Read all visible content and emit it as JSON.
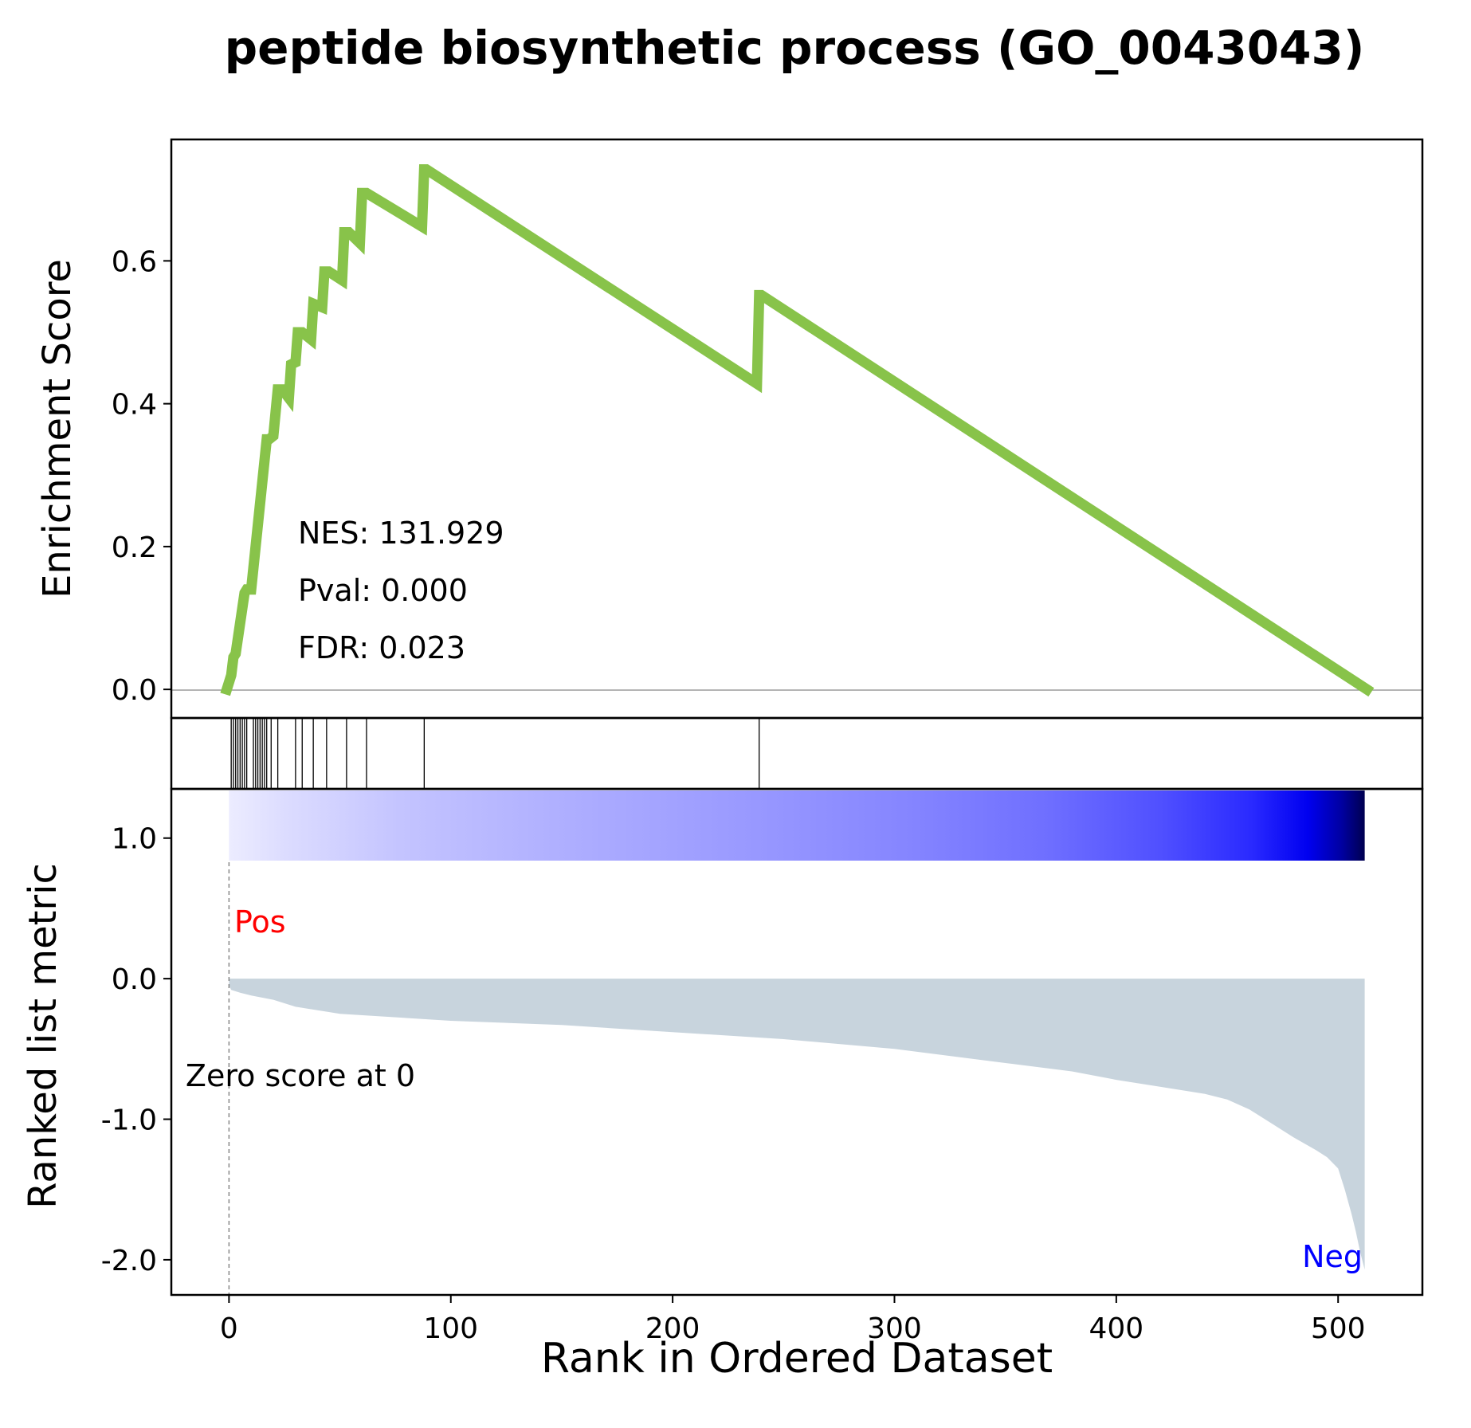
{
  "chart_data": {
    "type": "line",
    "title": "peptide biosynthetic process (GO_0043043)",
    "xlabel": "Rank in Ordered Dataset",
    "es_panel": {
      "ylabel": "Enrichment Score",
      "ylim": [
        -0.04,
        0.77
      ],
      "yticks": [
        "0.0",
        "0.2",
        "0.4",
        "0.6"
      ],
      "zero_line": true,
      "line_color": "#88c34a",
      "stats": {
        "nes": "NES: 131.929",
        "pval": "Pval: 0.000",
        "fdr": "FDR: 0.023"
      },
      "series": [
        {
          "x": [
            -1,
            1,
            2,
            3,
            7,
            8,
            10,
            17,
            18,
            20,
            22,
            24,
            27,
            28,
            30,
            31,
            33,
            37,
            38,
            42,
            43,
            45,
            51,
            52,
            54,
            59,
            60,
            62,
            87,
            88,
            89,
            238,
            239,
            240,
            513
          ],
          "y": [
            0.0,
            0.02,
            0.045,
            0.05,
            0.135,
            0.14,
            0.14,
            0.35,
            0.35,
            0.355,
            0.42,
            0.42,
            0.408,
            0.455,
            0.458,
            0.5,
            0.5,
            0.49,
            0.54,
            0.535,
            0.585,
            0.585,
            0.573,
            0.64,
            0.64,
            0.625,
            0.695,
            0.695,
            0.648,
            0.728,
            0.728,
            0.428,
            0.552,
            0.552,
            0.0
          ]
        }
      ]
    },
    "hits_panel": {
      "hit_ranks": [
        1,
        2,
        3,
        4,
        5,
        6,
        7,
        8,
        11,
        12,
        13,
        14,
        15,
        16,
        17,
        19,
        22,
        30,
        33,
        38,
        44,
        53,
        62,
        88,
        239
      ]
    },
    "rank_panel": {
      "ylabel": "Ranked list metric",
      "ylim": [
        -2.25,
        1.35
      ],
      "yticks": [
        "1.0",
        "0.0",
        "-1.0",
        "-2.0"
      ],
      "pos_label": "Pos",
      "neg_label": "Neg",
      "zero_label": "Zero score at 0",
      "pos_color": "#ff0000",
      "neg_color": "#0000ff",
      "fill_color": "#c8d4dd",
      "series": [
        {
          "x": [
            0,
            1,
            5,
            10,
            20,
            30,
            50,
            80,
            100,
            150,
            200,
            250,
            300,
            350,
            380,
            400,
            420,
            440,
            450,
            460,
            470,
            480,
            490,
            495,
            500,
            503,
            506,
            508,
            510,
            512
          ],
          "y": [
            -0.05,
            -0.08,
            -0.1,
            -0.12,
            -0.15,
            -0.2,
            -0.25,
            -0.28,
            -0.3,
            -0.33,
            -0.38,
            -0.43,
            -0.5,
            -0.6,
            -0.66,
            -0.72,
            -0.77,
            -0.82,
            -0.86,
            -0.93,
            -1.03,
            -1.13,
            -1.22,
            -1.27,
            -1.35,
            -1.5,
            -1.67,
            -1.8,
            -1.95,
            -2.07
          ]
        }
      ]
    },
    "xlim": [
      -26,
      538
    ],
    "xticks": [
      "0",
      "100",
      "200",
      "300",
      "400",
      "500"
    ]
  }
}
